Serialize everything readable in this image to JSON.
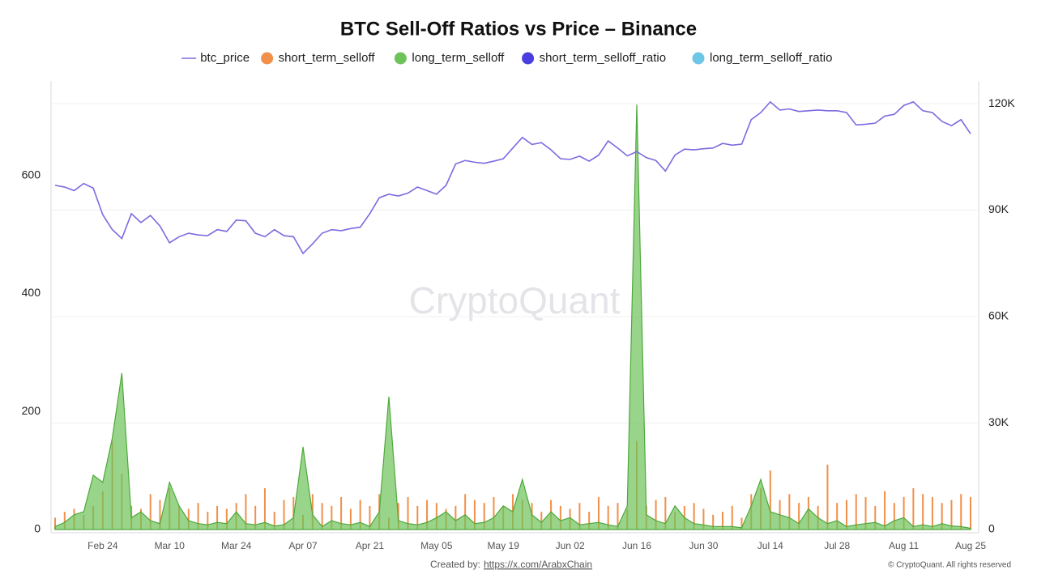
{
  "chart_data": {
    "type": "line",
    "title": "BTC Sell-Off Ratios vs Price – Binance",
    "watermark": "CryptoQuant",
    "created_by": "Created by:",
    "created_link": "https://x.com/ArabxChain",
    "copyright": "© CryptoQuant. All rights reserved",
    "categories": [
      null,
      null,
      null,
      null,
      null,
      "Feb 24",
      null,
      null,
      null,
      null,
      null,
      null,
      "Mar 10",
      null,
      null,
      null,
      null,
      null,
      null,
      "Mar 24",
      null,
      null,
      null,
      null,
      null,
      null,
      "Apr 07",
      null,
      null,
      null,
      null,
      null,
      null,
      "Apr 21",
      null,
      null,
      null,
      null,
      null,
      null,
      "May 05",
      null,
      null,
      null,
      null,
      null,
      null,
      "May 19",
      null,
      null,
      null,
      null,
      null,
      null,
      "Jun 02",
      null,
      null,
      null,
      null,
      null,
      null,
      "Jun 16",
      null,
      null,
      null,
      null,
      null,
      null,
      "Jun 30",
      null,
      null,
      null,
      null,
      null,
      null,
      "Jul 14",
      null,
      null,
      null,
      null,
      null,
      null,
      "Jul 28",
      null,
      null,
      null,
      null,
      null,
      null,
      "Aug 11",
      null,
      null,
      null,
      null,
      null,
      null,
      "Aug 25"
    ],
    "ylim": [
      0,
      760
    ],
    "yticks": [
      0,
      200,
      400,
      600
    ],
    "y2lim": [
      0,
      126400
    ],
    "y2ticks": [
      {
        "value": 0,
        "label": "0"
      },
      {
        "value": 30000,
        "label": "30K"
      },
      {
        "value": 60000,
        "label": "60K"
      },
      {
        "value": 90000,
        "label": "90K"
      },
      {
        "value": 120000,
        "label": "120K"
      }
    ],
    "grid": true,
    "series": [
      {
        "name": "btc_price",
        "color": "#7b6be0",
        "kind": "line",
        "axis": "y2",
        "values": [
          97000,
          96500,
          95500,
          97500,
          96200,
          88700,
          84500,
          82000,
          89000,
          86500,
          88500,
          85500,
          80800,
          82500,
          83500,
          83000,
          82800,
          84500,
          84000,
          87200,
          87000,
          83500,
          82500,
          84500,
          82800,
          82500,
          77800,
          80500,
          83500,
          84500,
          84200,
          84800,
          85200,
          89000,
          93500,
          94500,
          94000,
          94800,
          96500,
          95500,
          94500,
          97000,
          103000,
          104000,
          103500,
          103200,
          103800,
          104500,
          107500,
          110500,
          108500,
          109000,
          107000,
          104500,
          104300,
          105200,
          103800,
          105500,
          109500,
          107500,
          105300,
          106500,
          104800,
          104000,
          101000,
          105500,
          107200,
          107000,
          107300,
          107500,
          108800,
          108300,
          108600,
          115500,
          117500,
          120500,
          118200,
          118500,
          117800,
          118000,
          118200,
          118000,
          118000,
          117500,
          114000,
          114200,
          114500,
          116500,
          117000,
          119500,
          120500,
          118000,
          117500,
          115000,
          113800,
          115500,
          111500
        ]
      },
      {
        "name": "short_term_selloff",
        "color": "#f0904a",
        "kind": "bar",
        "values": [
          20,
          30,
          35,
          25,
          40,
          65,
          150,
          95,
          40,
          35,
          60,
          50,
          70,
          40,
          35,
          45,
          30,
          40,
          35,
          45,
          60,
          40,
          70,
          30,
          50,
          55,
          25,
          60,
          45,
          40,
          55,
          35,
          50,
          40,
          60,
          20,
          45,
          55,
          40,
          50,
          45,
          35,
          40,
          60,
          50,
          45,
          55,
          40,
          60,
          50,
          45,
          30,
          50,
          40,
          35,
          45,
          30,
          55,
          40,
          45,
          35,
          150,
          40,
          50,
          55,
          30,
          40,
          45,
          35,
          25,
          30,
          40,
          20,
          60,
          70,
          100,
          50,
          60,
          45,
          55,
          40,
          110,
          45,
          50,
          60,
          55,
          40,
          65,
          45,
          55,
          70,
          60,
          55,
          45,
          50,
          60,
          55
        ]
      },
      {
        "name": "long_term_selloff",
        "color": "#6cc35a",
        "kind": "area",
        "values": [
          5,
          12,
          25,
          30,
          92,
          80,
          155,
          265,
          20,
          30,
          15,
          10,
          80,
          40,
          15,
          10,
          8,
          12,
          10,
          30,
          10,
          8,
          12,
          6,
          8,
          20,
          140,
          25,
          5,
          15,
          10,
          8,
          12,
          5,
          30,
          225,
          15,
          10,
          8,
          12,
          20,
          30,
          15,
          25,
          10,
          12,
          20,
          40,
          30,
          85,
          25,
          12,
          30,
          15,
          20,
          8,
          10,
          12,
          8,
          5,
          40,
          720,
          25,
          15,
          10,
          40,
          20,
          10,
          8,
          5,
          5,
          5,
          3,
          40,
          85,
          30,
          25,
          20,
          10,
          35,
          20,
          10,
          15,
          5,
          8,
          10,
          12,
          6,
          15,
          20,
          5,
          8,
          5,
          10,
          6,
          5,
          2
        ]
      },
      {
        "name": "short_term_selloff_ratio",
        "color": "#4a3ee0",
        "kind": "line"
      },
      {
        "name": "long_term_selloff_ratio",
        "color": "#6ec6e6",
        "kind": "line"
      }
    ]
  }
}
